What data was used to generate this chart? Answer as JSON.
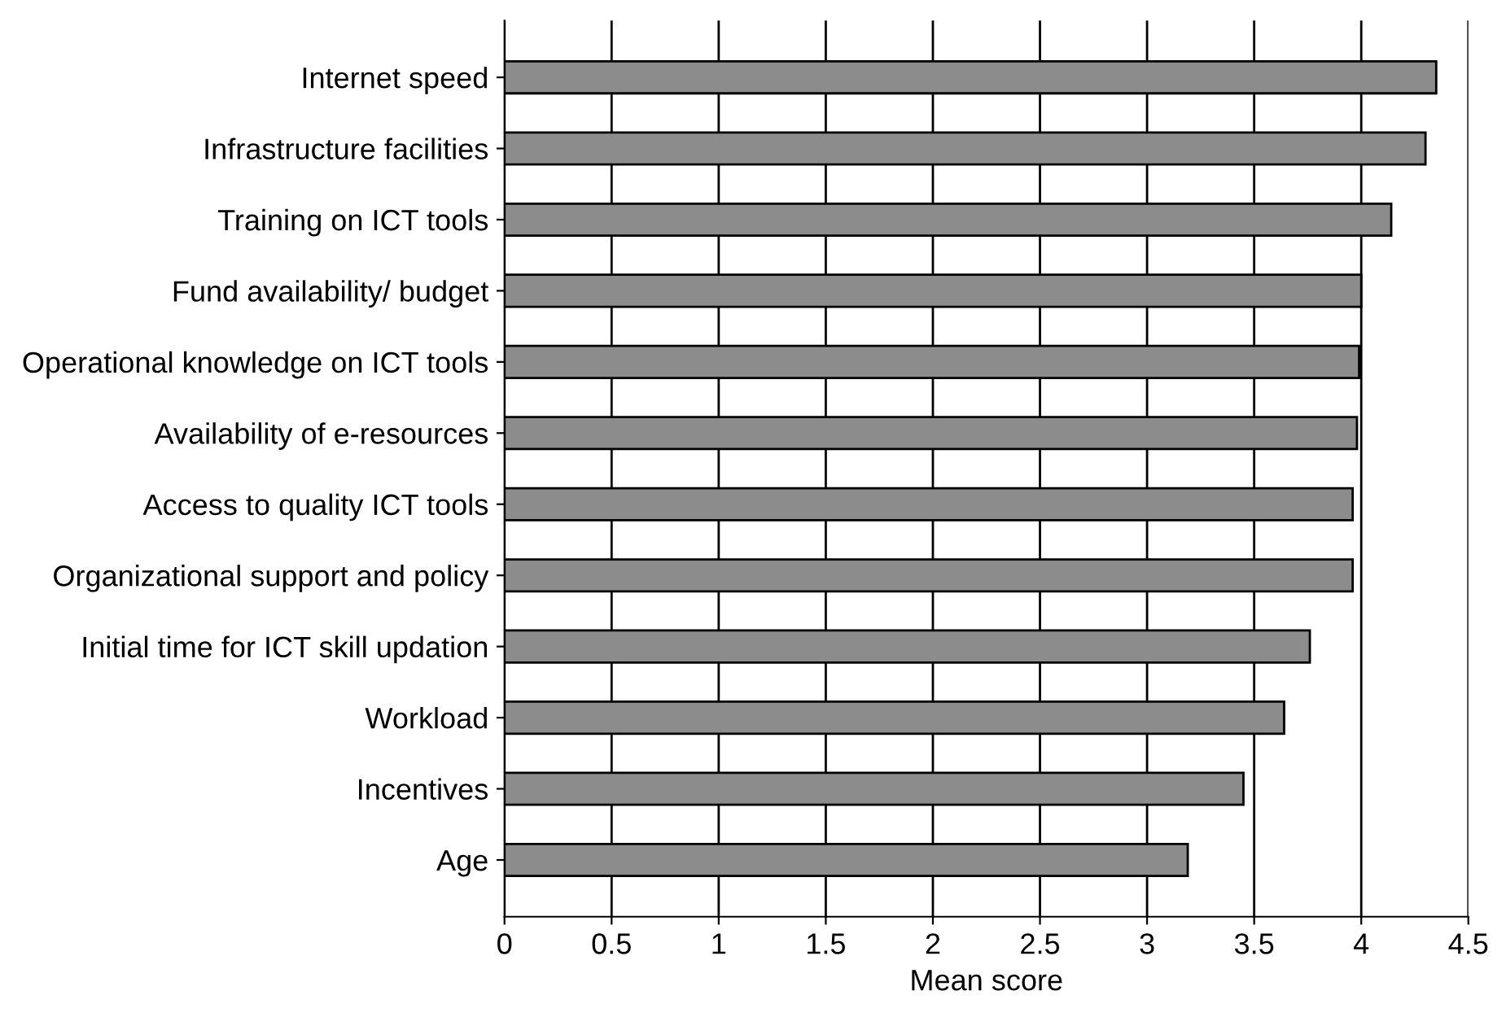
{
  "chart_data": {
    "type": "bar",
    "orientation": "horizontal",
    "xlabel": "Mean score",
    "categories": [
      "Internet speed",
      "Infrastructure facilities",
      "Training on ICT tools",
      "Fund availability/ budget",
      "Operational knowledge on ICT tools",
      "Availability of e-resources",
      "Access to quality ICT tools",
      "Organizational support and policy",
      "Initial time for ICT skill updation",
      "Workload",
      "Incentives",
      "Age"
    ],
    "values": [
      4.35,
      4.3,
      4.14,
      4.0,
      3.99,
      3.98,
      3.96,
      3.96,
      3.76,
      3.64,
      3.45,
      3.19
    ],
    "color": "#8c8c8c",
    "xlim": [
      0,
      4.5
    ],
    "xticks": [
      0,
      0.5,
      1,
      1.5,
      2,
      2.5,
      3,
      3.5,
      4,
      4.5
    ],
    "grid": "x"
  }
}
